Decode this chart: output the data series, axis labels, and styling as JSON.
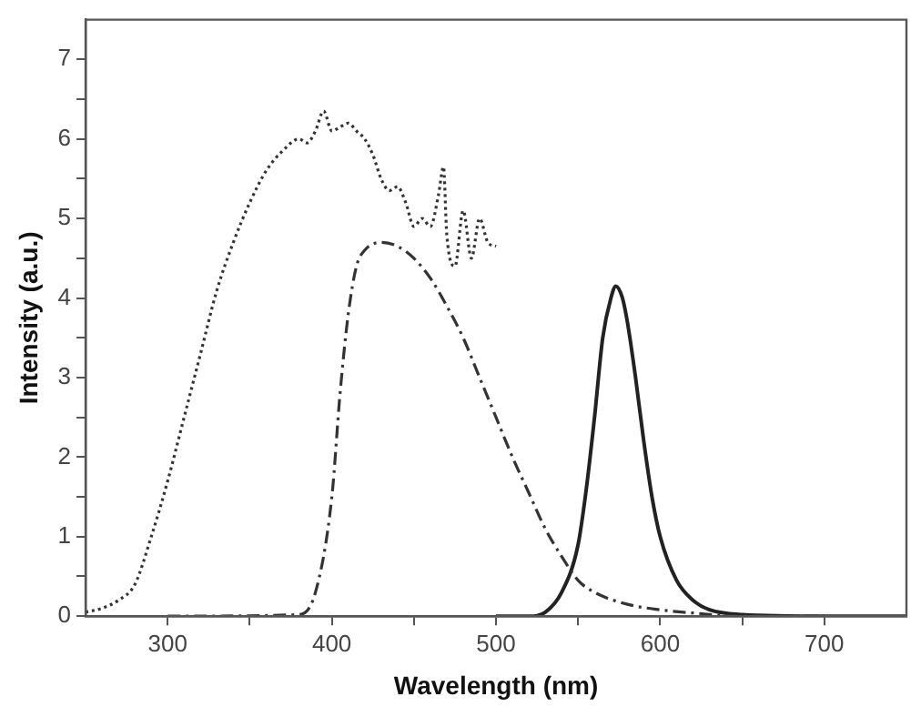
{
  "chart_data": {
    "type": "line",
    "xlabel": "Wavelength (nm)",
    "ylabel": "Intensity (a.u.)",
    "xlim": [
      250,
      750
    ],
    "ylim": [
      0,
      7.5
    ],
    "xticks": [
      300,
      {
        "value": 350,
        "label": null
      },
      400,
      {
        "value": 450,
        "label": null
      },
      500,
      {
        "value": 550,
        "label": null
      },
      600,
      {
        "value": 650,
        "label": null
      },
      700
    ],
    "yticks": [
      0,
      {
        "value": 0.5,
        "label": null
      },
      1,
      {
        "value": 1.5,
        "label": null
      },
      2,
      {
        "value": 2.5,
        "label": null
      },
      3,
      {
        "value": 3.5,
        "label": null
      },
      4,
      {
        "value": 4.5,
        "label": null
      },
      5,
      {
        "value": 5.5,
        "label": null
      },
      6,
      {
        "value": 6.5,
        "label": null
      },
      7
    ],
    "grid": false,
    "legend": false,
    "marker": "none",
    "series": [
      {
        "color": "#333333",
        "line_style": "dotted",
        "x": [
          250,
          260,
          270,
          280,
          290,
          300,
          310,
          320,
          330,
          340,
          350,
          360,
          370,
          380,
          385,
          390,
          395,
          400,
          405,
          410,
          415,
          420,
          425,
          430,
          435,
          440,
          445,
          450,
          455,
          460,
          465,
          468,
          470,
          475,
          480,
          485,
          490,
          495,
          500
        ],
        "values": [
          0.05,
          0.1,
          0.2,
          0.4,
          1.0,
          1.7,
          2.5,
          3.3,
          4.1,
          4.7,
          5.2,
          5.6,
          5.85,
          6.0,
          5.95,
          6.1,
          6.35,
          6.1,
          6.15,
          6.2,
          6.1,
          6.0,
          5.8,
          5.5,
          5.35,
          5.4,
          5.2,
          4.9,
          5.0,
          4.9,
          5.3,
          5.65,
          4.8,
          4.4,
          5.1,
          4.5,
          5.0,
          4.7,
          4.65
        ]
      },
      {
        "color": "#333333",
        "line_style": "dashdot",
        "x": [
          300,
          380,
          390,
          400,
          405,
          410,
          415,
          420,
          430,
          440,
          450,
          460,
          470,
          480,
          490,
          500,
          510,
          520,
          530,
          540,
          550,
          560,
          580,
          600,
          620,
          650,
          700
        ],
        "values": [
          0,
          0.02,
          0.3,
          1.5,
          2.8,
          3.8,
          4.4,
          4.6,
          4.7,
          4.65,
          4.5,
          4.25,
          3.9,
          3.5,
          3.0,
          2.5,
          2.0,
          1.55,
          1.1,
          0.75,
          0.45,
          0.3,
          0.15,
          0.08,
          0.04,
          0,
          0
        ]
      },
      {
        "color": "#222222",
        "line_style": "solid",
        "x": [
          500,
          520,
          530,
          540,
          550,
          555,
          560,
          565,
          570,
          573,
          577,
          580,
          585,
          590,
          595,
          600,
          610,
          620,
          630,
          650,
          700,
          750
        ],
        "values": [
          0,
          0,
          0.05,
          0.3,
          0.9,
          1.6,
          2.5,
          3.5,
          4.0,
          4.15,
          4.0,
          3.7,
          3.0,
          2.2,
          1.5,
          1.0,
          0.45,
          0.2,
          0.08,
          0.02,
          0,
          0
        ]
      }
    ]
  }
}
